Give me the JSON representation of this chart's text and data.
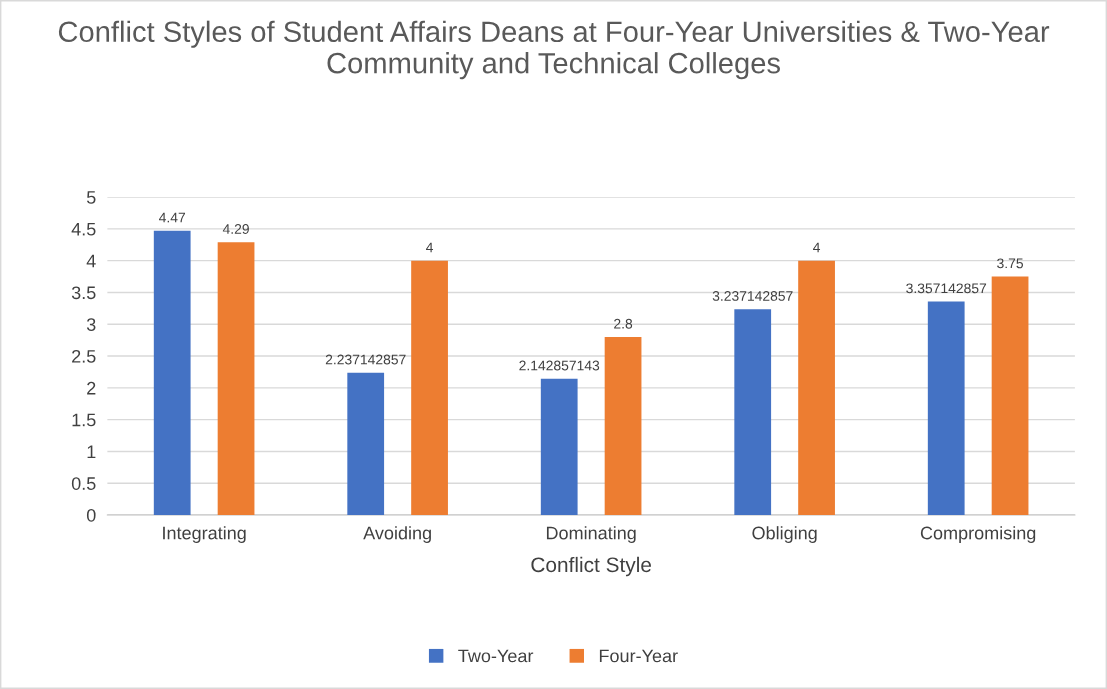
{
  "chart_data": {
    "type": "bar",
    "title": "Conflict Styles of Student Affairs Deans at Four-Year Universities & Two-Year Community and Technical Colleges",
    "xlabel": "Conflict Style",
    "categories": [
      "Integrating",
      "Avoiding",
      "Dominating",
      "Obliging",
      "Compromising"
    ],
    "series": [
      {
        "name": "Two-Year",
        "color": "#4472c4",
        "values": [
          4.47,
          2.237142857,
          2.142857143,
          3.237142857,
          3.357142857
        ]
      },
      {
        "name": "Four-Year",
        "color": "#ed7d31",
        "values": [
          4.29,
          4,
          2.8,
          4,
          3.75
        ]
      }
    ],
    "ylim": [
      0,
      5
    ],
    "yticks": [
      0,
      0.5,
      1,
      1.5,
      2,
      2.5,
      3,
      3.5,
      4,
      4.5,
      5
    ],
    "grid": "y",
    "legend": "bottom",
    "data_labels": true
  }
}
